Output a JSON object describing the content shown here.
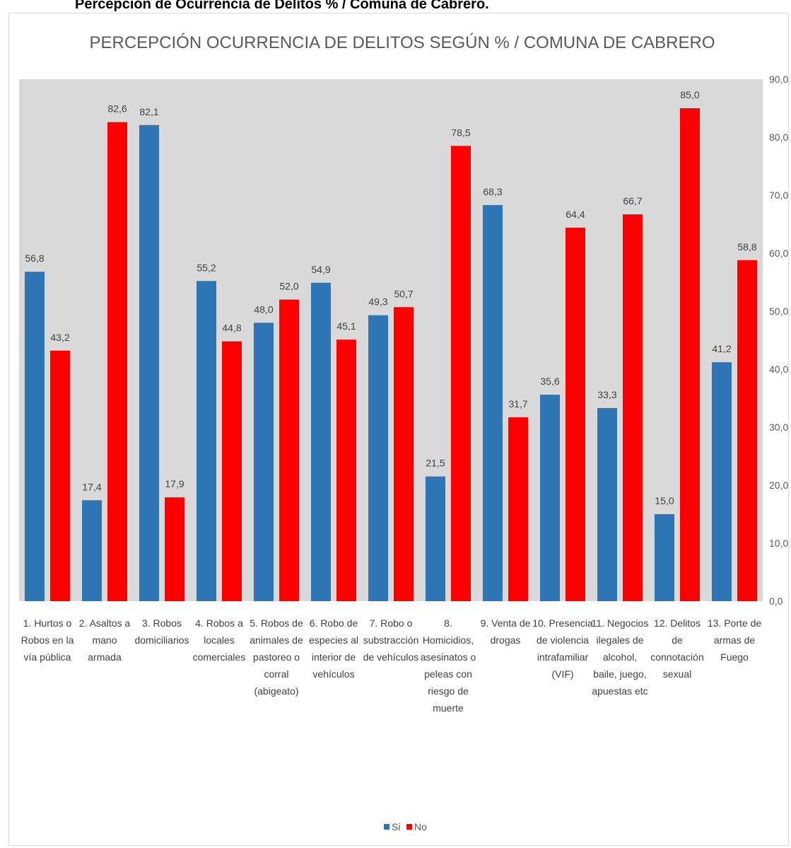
{
  "document": {
    "heading": "Percepción de Ocurrencia de Delitos % / Comuna de Cabrero."
  },
  "chart_data": {
    "type": "bar",
    "title": "PERCEPCIÓN OCURRENCIA DE DELITOS SEGÚN % / COMUNA DE CABRERO",
    "xlabel": "",
    "ylabel": "",
    "ylim": [
      0,
      90
    ],
    "y_ticks": [
      "0,0",
      "10,0",
      "20,0",
      "30,0",
      "40,0",
      "50,0",
      "60,0",
      "70,0",
      "80,0",
      "90,0"
    ],
    "y_axis_side": "right",
    "plot_background": "#d9d9d9",
    "grid": false,
    "legend_position": "bottom",
    "categories": [
      [
        "1. Hurtos o",
        "Robos en la",
        "vía pública"
      ],
      [
        "2. Asaltos a",
        "mano",
        "armada"
      ],
      [
        "3. Robos",
        "domiciliarios"
      ],
      [
        "4. Robos a",
        "locales",
        "comerciales"
      ],
      [
        "5. Robos de",
        "animales de",
        "pastoreo o",
        "corral",
        "(abigeato)"
      ],
      [
        "6. Robo de",
        "especies al",
        "interior de",
        "vehículos"
      ],
      [
        "7. Robo o",
        "substracción",
        "de vehículos"
      ],
      [
        "8.",
        "Homicidios,",
        "asesinatos o",
        "peleas con",
        "riesgo de",
        "muerte"
      ],
      [
        "9. Venta de",
        "drogas"
      ],
      [
        "10. Presencia",
        "de violencia",
        "intrafamiliar",
        "(VIF)"
      ],
      [
        "11. Negocios",
        "ilegales de",
        "alcohol,",
        "baile, juego,",
        "apuestas etc"
      ],
      [
        "12. Delitos",
        "de",
        "connotación",
        "sexual"
      ],
      [
        "13. Porte de",
        "armas de",
        "Fuego"
      ]
    ],
    "series": [
      {
        "name": "Si",
        "color": "#2e75b6",
        "values": [
          56.8,
          17.4,
          82.1,
          55.2,
          48.0,
          54.9,
          49.3,
          21.5,
          68.3,
          35.6,
          33.3,
          15.0,
          41.2
        ],
        "labels": [
          "56,8",
          "17,4",
          "82,1",
          "55,2",
          "48,0",
          "54,9",
          "49,3",
          "21,5",
          "68,3",
          "35,6",
          "33,3",
          "15,0",
          "41,2"
        ]
      },
      {
        "name": "No",
        "color": "#ff0000",
        "values": [
          43.2,
          82.6,
          17.9,
          44.8,
          52.0,
          45.1,
          50.7,
          78.5,
          31.7,
          64.4,
          66.7,
          85.0,
          58.8
        ],
        "labels": [
          "43,2",
          "82,6",
          "17,9",
          "44,8",
          "52,0",
          "45,1",
          "50,7",
          "78,5",
          "31,7",
          "64,4",
          "66,7",
          "85,0",
          "58,8"
        ]
      }
    ]
  }
}
